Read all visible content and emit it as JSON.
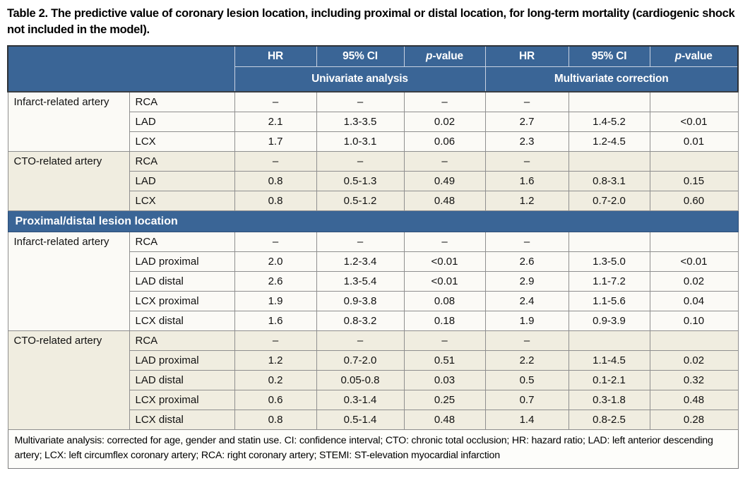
{
  "title": "Table 2. The predictive value of coronary lesion location, including proximal or distal location, for long-term mortality (cardiogenic shock not included in the model).",
  "colors": {
    "header_blue": "#3a6596",
    "beige_row": "#f0ede0",
    "light_row": "#fbfaf6",
    "border_gray": "#8f8f8f"
  },
  "header": {
    "col_headers": [
      {
        "text": "HR",
        "italic_first": false
      },
      {
        "text": "95% CI",
        "italic_first": false
      },
      {
        "text": "p-value",
        "italic_first": true
      },
      {
        "text": "HR",
        "italic_first": false
      },
      {
        "text": "95% CI",
        "italic_first": false
      },
      {
        "text": "p-value",
        "italic_first": true
      }
    ],
    "group_headers": [
      "Univariate analysis",
      "Multivariate correction"
    ]
  },
  "sections": [
    {
      "category": "Infarct-related artery",
      "tone": "light",
      "rows": [
        {
          "artery": "RCA",
          "values": [
            "–",
            "–",
            "–",
            "–",
            "",
            ""
          ]
        },
        {
          "artery": "LAD",
          "values": [
            "2.1",
            "1.3-3.5",
            "0.02",
            "2.7",
            "1.4-5.2",
            "<0.01"
          ]
        },
        {
          "artery": "LCX",
          "values": [
            "1.7",
            "1.0-3.1",
            "0.06",
            "2.3",
            "1.2-4.5",
            "0.01"
          ]
        }
      ]
    },
    {
      "category": "CTO-related artery",
      "tone": "beige",
      "rows": [
        {
          "artery": "RCA",
          "values": [
            "–",
            "–",
            "–",
            "–",
            "",
            ""
          ]
        },
        {
          "artery": "LAD",
          "values": [
            "0.8",
            "0.5-1.3",
            "0.49",
            "1.6",
            "0.8-3.1",
            "0.15"
          ]
        },
        {
          "artery": "LCX",
          "values": [
            "0.8",
            "0.5-1.2",
            "0.48",
            "1.2",
            "0.7-2.0",
            "0.60"
          ]
        }
      ]
    },
    {
      "divider_above": "Proximal/distal lesion location",
      "category": "Infarct-related artery",
      "tone": "light",
      "rows": [
        {
          "artery": "RCA",
          "values": [
            "–",
            "–",
            "–",
            "–",
            "",
            ""
          ]
        },
        {
          "artery": "LAD proximal",
          "values": [
            "2.0",
            "1.2-3.4",
            "<0.01",
            "2.6",
            "1.3-5.0",
            "<0.01"
          ]
        },
        {
          "artery": "LAD distal",
          "values": [
            "2.6",
            "1.3-5.4",
            "<0.01",
            "2.9",
            "1.1-7.2",
            "0.02"
          ]
        },
        {
          "artery": "LCX proximal",
          "values": [
            "1.9",
            "0.9-3.8",
            "0.08",
            "2.4",
            "1.1-5.6",
            "0.04"
          ]
        },
        {
          "artery": "LCX distal",
          "values": [
            "1.6",
            "0.8-3.2",
            "0.18",
            "1.9",
            "0.9-3.9",
            "0.10"
          ]
        }
      ]
    },
    {
      "category": "CTO-related artery",
      "tone": "beige",
      "rows": [
        {
          "artery": "RCA",
          "values": [
            "–",
            "–",
            "–",
            "–",
            "",
            ""
          ]
        },
        {
          "artery": "LAD proximal",
          "values": [
            "1.2",
            "0.7-2.0",
            "0.51",
            "2.2",
            "1.1-4.5",
            "0.02"
          ]
        },
        {
          "artery": "LAD distal",
          "values": [
            "0.2",
            "0.05-0.8",
            "0.03",
            "0.5",
            "0.1-2.1",
            "0.32"
          ]
        },
        {
          "artery": "LCX proximal",
          "values": [
            "0.6",
            "0.3-1.4",
            "0.25",
            "0.7",
            "0.3-1.8",
            "0.48"
          ]
        },
        {
          "artery": "LCX distal",
          "values": [
            "0.8",
            "0.5-1.4",
            "0.48",
            "1.4",
            "0.8-2.5",
            "0.28"
          ]
        }
      ]
    }
  ],
  "footnote": "Multivariate analysis: corrected for age, gender and statin use. CI: confidence interval; CTO: chronic total occlusion; HR: hazard ratio; LAD: left anterior descending artery; LCX: left circumflex coronary artery; RCA: right coronary artery; STEMI: ST-elevation myocardial infarction"
}
